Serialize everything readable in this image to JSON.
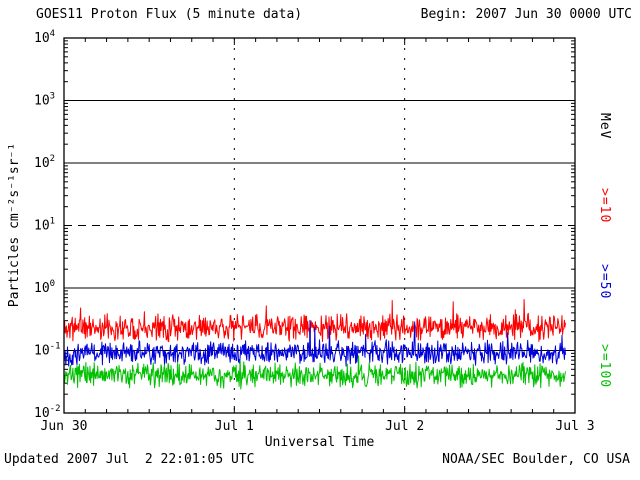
{
  "header": {
    "title": "GOES11 Proton Flux (5 minute data)",
    "begin_label": "Begin: 2007 Jun 30 0000 UTC"
  },
  "footer": {
    "updated": "Updated 2007 Jul  2 22:01:05 UTC",
    "credit": "NOAA/SEC Boulder, CO USA"
  },
  "chart_data": {
    "type": "line",
    "title": "GOES11 Proton Flux (5 minute data)",
    "xlabel": "Universal Time",
    "ylabel": "Particles cm⁻²s⁻¹sr⁻¹",
    "right_axis_label": "MeV",
    "x_ticks": [
      "Jun 30",
      "Jul 1",
      "Jul 2",
      "Jul 3"
    ],
    "x_range_days": 3,
    "ylim_log10": [
      -2,
      4
    ],
    "y_tick_exponents": [
      4,
      3,
      2,
      1,
      0,
      -1,
      -2
    ],
    "hlines_solid_exponents": [
      3,
      2,
      0,
      -1
    ],
    "hline_dashed_exponent": 1,
    "grid": "horizontal solid per decade, dashed at 10^1, dashed vertical at day boundaries",
    "legend_position": "right-edge rotated labels",
    "series": [
      {
        "name": ">=10",
        "color": "#ff0000",
        "approx_mean_flux": 0.23,
        "approx_range_flux": [
          0.09,
          0.5
        ],
        "baseline_log10": -0.63,
        "noise_log10": 0.12,
        "spike_prob": 0.02,
        "spike_log10": 0.4,
        "points_per_day": 288,
        "end_fraction": 0.982,
        "seed": 11
      },
      {
        "name": ">=50",
        "color": "#0000dd",
        "approx_mean_flux": 0.09,
        "approx_range_flux": [
          0.04,
          0.25
        ],
        "baseline_log10": -1.04,
        "noise_log10": 0.11,
        "spike_prob": 0.015,
        "spike_log10": 0.4,
        "points_per_day": 288,
        "end_fraction": 0.982,
        "seed": 22
      },
      {
        "name": ">=100",
        "color": "#00c000",
        "approx_mean_flux": 0.04,
        "approx_range_flux": [
          0.02,
          0.09
        ],
        "baseline_log10": -1.4,
        "noise_log10": 0.11,
        "spike_prob": 0.01,
        "spike_log10": 0.3,
        "points_per_day": 288,
        "end_fraction": 0.982,
        "seed": 33
      }
    ]
  }
}
